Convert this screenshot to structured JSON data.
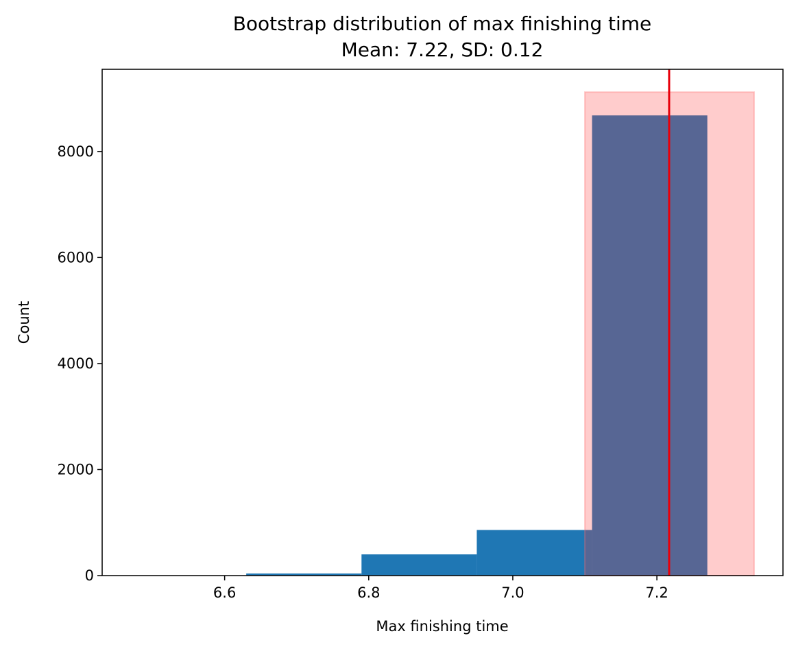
{
  "chart_data": {
    "type": "bar",
    "title": "Bootstrap distribution of max finishing time",
    "subtitle": "Mean: 7.22, SD: 0.12",
    "xlabel": "Max finishing time",
    "ylabel": "Count",
    "xlim": [
      6.43,
      7.375
    ],
    "ylim": [
      0,
      9550
    ],
    "xticks": [
      6.6,
      6.8,
      7.0,
      7.2
    ],
    "xtick_labels": [
      "6.6",
      "6.8",
      "7.0",
      "7.2"
    ],
    "yticks": [
      0,
      2000,
      4000,
      6000,
      8000
    ],
    "ytick_labels": [
      "0",
      "2000",
      "4000",
      "6000",
      "8000"
    ],
    "bins": [
      {
        "x0": 6.47,
        "x1": 6.63,
        "count": 5
      },
      {
        "x0": 6.63,
        "x1": 6.79,
        "count": 40
      },
      {
        "x0": 6.79,
        "x1": 6.95,
        "count": 400
      },
      {
        "x0": 6.95,
        "x1": 7.11,
        "count": 860
      },
      {
        "x0": 7.11,
        "x1": 7.27,
        "count": 8680
      }
    ],
    "shaded_region": {
      "x0": 7.1,
      "x1": 7.335,
      "top": 9120
    },
    "mean_line": 7.217,
    "grid": false,
    "legend": "none",
    "colors": {
      "bar": "#1f77b4",
      "shade_fill": "#ffcccc",
      "shade_edge": "#ffaaaa",
      "mean_line": "#e8000b"
    }
  }
}
